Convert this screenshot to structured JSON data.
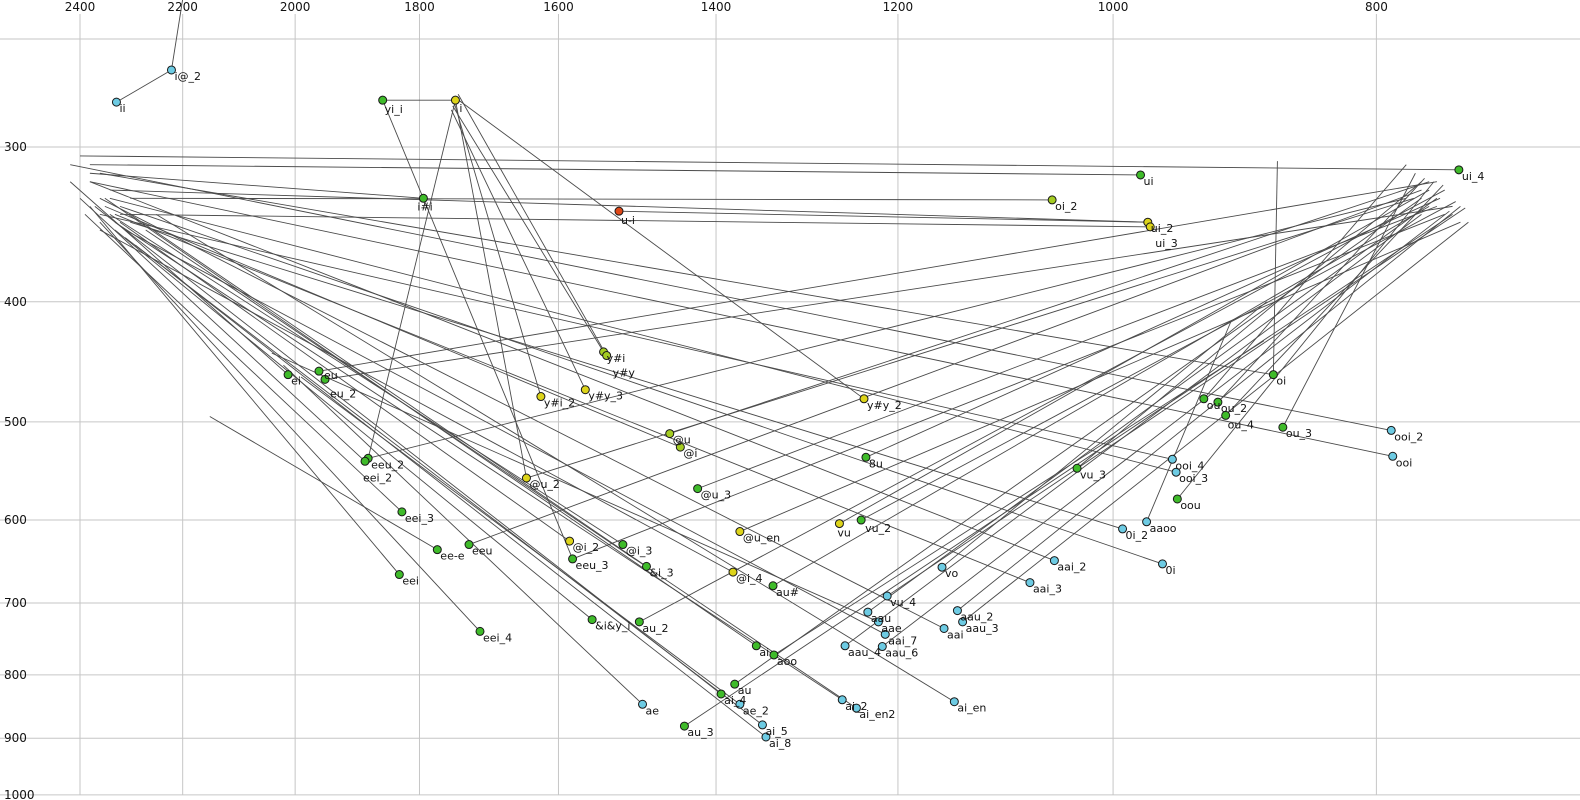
{
  "chart_data": {
    "type": "scatter",
    "title": "",
    "xlabel": "",
    "ylabel": "",
    "x_axis": {
      "scale": "log",
      "reversed": true,
      "ticks": [
        2400,
        2200,
        2000,
        1800,
        1600,
        1400,
        1200,
        1000,
        800
      ]
    },
    "y_axis": {
      "scale": "log",
      "reversed": true,
      "ticks": [
        300,
        400,
        500,
        600,
        700,
        800,
        900,
        1000
      ]
    },
    "grid": true,
    "colors": {
      "green": "#3fbb2a",
      "yellow": "#ddd41a",
      "yellowgreen": "#a4cc22",
      "cyan": "#6dcbe3",
      "red": "#e04818"
    },
    "points": [
      {
        "l": "i@_2",
        "f2": 2221,
        "f1": 260,
        "c": "cyan",
        "to": [
          2200,
          228
        ]
      },
      {
        "l": "ii",
        "f2": 2327,
        "f1": 276,
        "c": "cyan",
        "to": [
          2221,
          260
        ]
      },
      {
        "l": "yi_i",
        "f2": 1857,
        "f1": 275,
        "c": "green",
        "to": [
          1746,
          275
        ],
        "lo": [
          2,
          13
        ]
      },
      {
        "l": "i",
        "f2": 1746,
        "f1": 275,
        "c": "yellow",
        "to": [
          1880,
          535
        ],
        "lo": [
          4,
          12
        ]
      },
      {
        "l": "ui",
        "f2": 977,
        "f1": 316,
        "c": "green",
        "to": [
          2380,
          310
        ]
      },
      {
        "l": "ui_4",
        "f2": 746,
        "f1": 313,
        "c": "green",
        "to": [
          2400,
          305
        ]
      },
      {
        "l": "i#i",
        "f2": 1794,
        "f1": 330,
        "c": "green",
        "to": [
          2380,
          315
        ],
        "lo": [
          -6,
          12
        ]
      },
      {
        "l": "u-i",
        "f2": 1520,
        "f1": 338,
        "c": "red",
        "to": [
          971,
          345
        ],
        "lo": [
          2,
          13
        ]
      },
      {
        "l": "oi_2",
        "f2": 1053,
        "f1": 331,
        "c": "yellowgreen",
        "to": [
          2300,
          330
        ]
      },
      {
        "l": "ui_2",
        "f2": 971,
        "f1": 345,
        "c": "yellow",
        "to": [
          2340,
          325
        ]
      },
      {
        "l": "ui_3",
        "f2": 969,
        "f1": 348,
        "c": "yellow",
        "to": [
          2320,
          340
        ],
        "lo": [
          5,
          20
        ]
      },
      {
        "l": "y#i",
        "f2": 1540,
        "f1": 439,
        "c": "yellowgreen",
        "to": [
          1750,
          278
        ]
      },
      {
        "l": "y#y",
        "f2": 1536,
        "f1": 442,
        "c": "yellowgreen",
        "to": [
          1742,
          272
        ],
        "lo": [
          6,
          21
        ]
      },
      {
        "l": "ei",
        "f2": 2012,
        "f1": 458,
        "c": "green",
        "to": [
          2420,
          320
        ]
      },
      {
        "l": "eu",
        "f2": 1960,
        "f1": 455,
        "c": "green",
        "to": [
          760,
          320
        ],
        "lo": [
          5,
          8
        ]
      },
      {
        "l": "eu_2",
        "f2": 1950,
        "f1": 462,
        "c": "green",
        "to": [
          750,
          335
        ],
        "lo": [
          5,
          18
        ]
      },
      {
        "l": "oi",
        "f2": 873,
        "f1": 458,
        "c": "green",
        "to": [
          2360,
          315
        ]
      },
      {
        "l": "y#i_2",
        "f2": 1624,
        "f1": 477,
        "c": "yellow",
        "to": [
          1748,
          276
        ]
      },
      {
        "l": "y#y_3",
        "f2": 1564,
        "f1": 471,
        "c": "yellow",
        "to": [
          1752,
          280
        ]
      },
      {
        "l": "y#y_2",
        "f2": 1235,
        "f1": 479,
        "c": "yellow",
        "to": [
          1745,
          274
        ]
      },
      {
        "l": "ou",
        "f2": 926,
        "f1": 479,
        "c": "green",
        "to": [
          780,
          310
        ]
      },
      {
        "l": "ou_2",
        "f2": 915,
        "f1": 482,
        "c": "green",
        "to": [
          768,
          318
        ]
      },
      {
        "l": "ou_4",
        "f2": 909,
        "f1": 494,
        "c": "green",
        "to": [
          756,
          322
        ],
        "lo": [
          2,
          13
        ]
      },
      {
        "l": "ou_3",
        "f2": 866,
        "f1": 505,
        "c": "green",
        "to": [
          774,
          315
        ]
      },
      {
        "l": "ooi_2",
        "f2": 790,
        "f1": 508,
        "c": "cyan",
        "to": [
          2420,
          310
        ]
      },
      {
        "l": "ooi",
        "f2": 789,
        "f1": 533,
        "c": "cyan",
        "to": [
          2380,
          320
        ]
      },
      {
        "l": "@u",
        "f2": 1456,
        "f1": 511,
        "c": "yellowgreen",
        "to": [
          765,
          320
        ]
      },
      {
        "l": "@i",
        "f2": 1443,
        "f1": 524,
        "c": "yellowgreen",
        "to": [
          2350,
          335
        ]
      },
      {
        "l": "8u",
        "f2": 1233,
        "f1": 534,
        "c": "green",
        "to": [
          758,
          330
        ]
      },
      {
        "l": "ooi_4",
        "f2": 951,
        "f1": 536,
        "c": "cyan",
        "to": [
          2360,
          340
        ]
      },
      {
        "l": "ooi_3",
        "f2": 948,
        "f1": 549,
        "c": "cyan",
        "to": [
          2340,
          330
        ]
      },
      {
        "l": "vu_3",
        "f2": 1031,
        "f1": 545,
        "c": "green",
        "to": [
          770,
          320
        ]
      },
      {
        "l": "eeu_2",
        "f2": 1880,
        "f1": 535,
        "c": "green",
        "to": [
          780,
          330
        ]
      },
      {
        "l": "eei_2",
        "f2": 1885,
        "f1": 538,
        "c": "green",
        "to": [
          2400,
          330
        ],
        "lo": [
          -2,
          20
        ]
      },
      {
        "l": "oou",
        "f2": 947,
        "f1": 577,
        "c": "green",
        "to": [
          762,
          320
        ]
      },
      {
        "l": "@u_2",
        "f2": 1644,
        "f1": 555,
        "c": "yellow",
        "to": [
          775,
          330
        ]
      },
      {
        "l": "@u_3",
        "f2": 1422,
        "f1": 566,
        "c": "green",
        "to": [
          760,
          335
        ]
      },
      {
        "l": "vu",
        "f2": 1261,
        "f1": 604,
        "c": "yellow",
        "to": [
          765,
          325
        ],
        "lo": [
          -2,
          13
        ]
      },
      {
        "l": "vu_2",
        "f2": 1238,
        "f1": 600,
        "c": "green",
        "to": [
          748,
          332
        ],
        "lo": [
          4,
          12
        ]
      },
      {
        "l": "0i_2",
        "f2": 992,
        "f1": 610,
        "c": "cyan",
        "to": [
          2300,
          345
        ]
      },
      {
        "l": "aaoo",
        "f2": 972,
        "f1": 602,
        "c": "cyan",
        "to": [
          905,
          415
        ]
      },
      {
        "l": "eei_3",
        "f2": 1827,
        "f1": 591,
        "c": "green",
        "to": [
          2390,
          340
        ]
      },
      {
        "l": "@u_en",
        "f2": 1372,
        "f1": 613,
        "c": "yellow",
        "to": [
          745,
          345
        ]
      },
      {
        "l": "ee-e",
        "f2": 1773,
        "f1": 634,
        "c": "green",
        "to": [
          2150,
          495
        ]
      },
      {
        "l": "eeu",
        "f2": 1726,
        "f1": 628,
        "c": "green",
        "to": [
          770,
          325
        ]
      },
      {
        "l": "@i_2",
        "f2": 1585,
        "f1": 624,
        "c": "yellow",
        "to": [
          2320,
          345
        ]
      },
      {
        "l": "@i_3",
        "f2": 1515,
        "f1": 628,
        "c": "green",
        "to": [
          2340,
          340
        ]
      },
      {
        "l": "eeu_3",
        "f2": 1581,
        "f1": 645,
        "c": "green",
        "to": [
          755,
          340
        ]
      },
      {
        "l": "&i_3",
        "f2": 1485,
        "f1": 654,
        "c": "green",
        "to": [
          2300,
          340
        ]
      },
      {
        "l": "vo",
        "f2": 1156,
        "f1": 655,
        "c": "cyan",
        "to": [
          878,
          400
        ]
      },
      {
        "l": "aai_2",
        "f2": 1051,
        "f1": 647,
        "c": "cyan",
        "to": [
          2380,
          320
        ]
      },
      {
        "l": "0i",
        "f2": 959,
        "f1": 651,
        "c": "cyan",
        "to": [
          2320,
          335
        ]
      },
      {
        "l": "eei",
        "f2": 1831,
        "f1": 664,
        "c": "green",
        "to": [
          2380,
          335
        ]
      },
      {
        "l": "@i_4",
        "f2": 1380,
        "f1": 661,
        "c": "yellow",
        "to": [
          2360,
          350
        ]
      },
      {
        "l": "au#",
        "f2": 1334,
        "f1": 678,
        "c": "green",
        "to": [
          765,
          335
        ]
      },
      {
        "l": "aai_3",
        "f2": 1073,
        "f1": 674,
        "c": "cyan",
        "to": [
          2330,
          340
        ]
      },
      {
        "l": "vu_4",
        "f2": 1211,
        "f1": 691,
        "c": "cyan",
        "to": [
          742,
          336
        ]
      },
      {
        "l": "aau",
        "f2": 1231,
        "f1": 712,
        "c": "cyan",
        "to": [
          760,
          330
        ]
      },
      {
        "l": "aae",
        "f2": 1220,
        "f1": 725,
        "c": "cyan",
        "to": [
          2040,
          440
        ]
      },
      {
        "l": "aai_7",
        "f2": 1213,
        "f1": 742,
        "c": "cyan",
        "to": [
          2310,
          350
        ]
      },
      {
        "l": "aau_4",
        "f2": 1255,
        "f1": 758,
        "c": "cyan",
        "to": [
          770,
          340
        ]
      },
      {
        "l": "aau_6",
        "f2": 1216,
        "f1": 759,
        "c": "cyan",
        "to": [
          752,
          338
        ]
      },
      {
        "l": "aau_2",
        "f2": 1141,
        "f1": 710,
        "c": "cyan",
        "to": [
          745,
          335
        ]
      },
      {
        "l": "aau_3",
        "f2": 1136,
        "f1": 725,
        "c": "cyan",
        "to": [
          740,
          345
        ]
      },
      {
        "l": "aai",
        "f2": 1154,
        "f1": 734,
        "c": "cyan",
        "to": [
          2360,
          330
        ]
      },
      {
        "l": "&i&y_i",
        "f2": 1555,
        "f1": 722,
        "c": "green",
        "to": [
          2330,
          350
        ]
      },
      {
        "l": "au_2",
        "f2": 1494,
        "f1": 725,
        "c": "green",
        "to": [
          755,
          325
        ]
      },
      {
        "l": "eei_4",
        "f2": 1710,
        "f1": 738,
        "c": "green",
        "to": [
          2360,
          345
        ]
      },
      {
        "l": "ai",
        "f2": 1353,
        "f1": 758,
        "c": "green",
        "to": [
          2350,
          330
        ]
      },
      {
        "l": "aoo",
        "f2": 1333,
        "f1": 771,
        "c": "green",
        "to": [
          880,
          430
        ]
      },
      {
        "l": "au",
        "f2": 1378,
        "f1": 814,
        "c": "green",
        "to": [
          770,
          330
        ]
      },
      {
        "l": "ai_4",
        "f2": 1394,
        "f1": 829,
        "c": "green",
        "to": [
          2370,
          335
        ]
      },
      {
        "l": "ae_2",
        "f2": 1372,
        "f1": 845,
        "c": "cyan",
        "to": [
          1990,
          460
        ]
      },
      {
        "l": "ae",
        "f2": 1490,
        "f1": 845,
        "c": "cyan",
        "to": [
          2020,
          450
        ]
      },
      {
        "l": "ai_2",
        "f2": 1258,
        "f1": 838,
        "c": "cyan",
        "to": [
          2330,
          345
        ]
      },
      {
        "l": "ai_en2",
        "f2": 1243,
        "f1": 851,
        "c": "cyan",
        "to": [
          2270,
          350
        ]
      },
      {
        "l": "ai_en",
        "f2": 1144,
        "f1": 841,
        "c": "cyan",
        "to": [
          2250,
          340
        ]
      },
      {
        "l": "au_3",
        "f2": 1438,
        "f1": 880,
        "c": "green",
        "to": [
          750,
          340
        ]
      },
      {
        "l": "ai_5",
        "f2": 1346,
        "f1": 878,
        "c": "cyan",
        "to": [
          2310,
          355
        ]
      },
      {
        "l": "ai_8",
        "f2": 1342,
        "f1": 898,
        "c": "cyan",
        "to": [
          2290,
          360
        ]
      }
    ],
    "extra_segments": [
      [
        [
          1746,
          275
        ],
        [
          1644,
          555
        ]
      ],
      [
        [
          870,
          308
        ],
        [
          873,
          458
        ]
      ],
      [
        [
          1857,
          275
        ],
        [
          1581,
          645
        ]
      ]
    ]
  }
}
